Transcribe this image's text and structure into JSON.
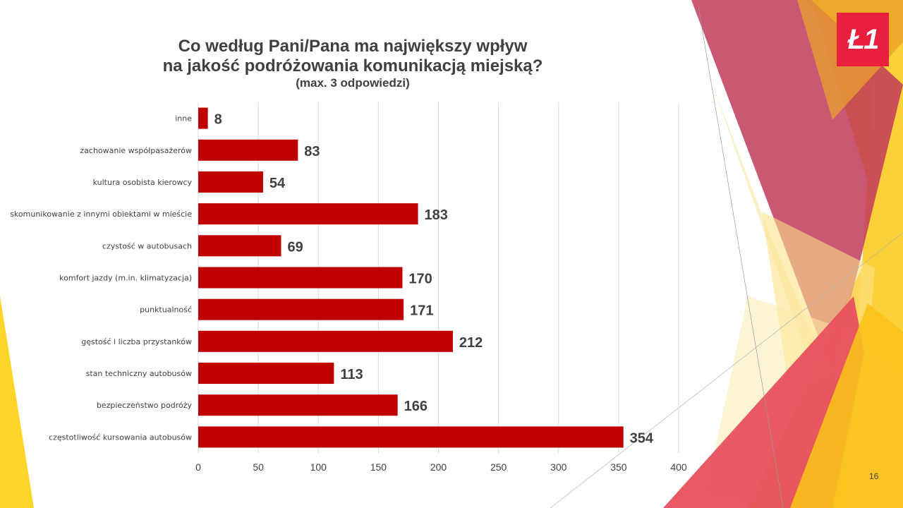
{
  "slide": {
    "title_line1": "Co według Pani/Pana ma największy wpływ",
    "title_line2": "na jakość podróżowania komunikacją miejską?",
    "subtitle": "(max. 3 odpowiedzi)",
    "logo_text": "Ł1",
    "page_number": "16"
  },
  "colors": {
    "bar": "#c00000",
    "grid": "#d9d9d9",
    "text": "#404040",
    "logo": "#e8203e"
  },
  "chart_data": {
    "type": "bar",
    "orientation": "horizontal",
    "categories": [
      "inne",
      "zachowanie współpasażerów",
      "kultura osobista kierowcy",
      "skomunikowanie z innymi obiektami w mieście",
      "czystość w autobusach",
      "komfort jazdy (m.in. klimatyzacja)",
      "punktualność",
      "gęstość i liczba przystanków",
      "stan techniczny autobusów",
      "bezpieczeństwo podróży",
      "częstotliwość kursowania autobusów"
    ],
    "values": [
      8,
      83,
      54,
      183,
      69,
      170,
      171,
      212,
      113,
      166,
      354
    ],
    "xlim": [
      0,
      400
    ],
    "xticks": [
      0,
      50,
      100,
      150,
      200,
      250,
      300,
      350,
      400
    ],
    "grid": true,
    "data_labels": true
  }
}
